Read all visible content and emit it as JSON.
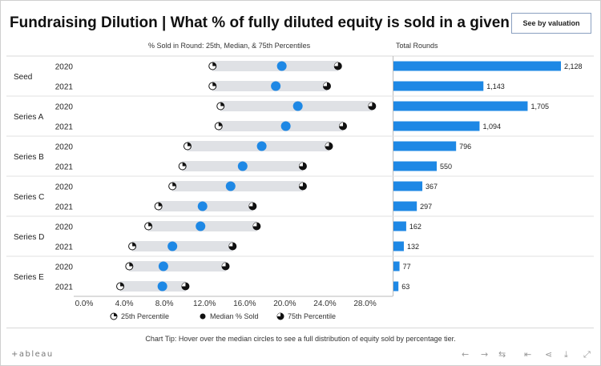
{
  "title": "Fundraising Dilution | What % of fully diluted equity is sold in a given round?",
  "valuation_button": "See by valuation",
  "left_subtitle": "% Sold in Round: 25th, Median, & 75th Percentiles",
  "right_subtitle": "Total Rounds",
  "legend": {
    "p25": "25th Percentile",
    "median": "Median % Sold",
    "p75": "75th Percentile"
  },
  "chart_tip": "Chart Tip: Hover over the median circles to see a full distribution of equity sold by percentage tier.",
  "brand": "+ableau",
  "colors": {
    "median": "#1e88e5",
    "bar": "#1e88e5",
    "range": "#dfe1e5",
    "marker": "#111111"
  },
  "chart_data": {
    "type": "dot-range + bar",
    "xlim": [
      0,
      0.3
    ],
    "x_ticks": [
      "0.0%",
      "4.0%",
      "8.0%",
      "12.0%",
      "16.0%",
      "20.0%",
      "24.0%",
      "28.0%"
    ],
    "groups": [
      {
        "name": "Seed",
        "rows": [
          {
            "year": "2020",
            "p25": 0.128,
            "median": 0.197,
            "p75": 0.253,
            "total": 2128,
            "total_label": "2,128"
          },
          {
            "year": "2021",
            "p25": 0.128,
            "median": 0.191,
            "p75": 0.242,
            "total": 1143,
            "total_label": "1,143"
          }
        ]
      },
      {
        "name": "Series A",
        "rows": [
          {
            "year": "2020",
            "p25": 0.136,
            "median": 0.213,
            "p75": 0.287,
            "total": 1705,
            "total_label": "1,705"
          },
          {
            "year": "2021",
            "p25": 0.134,
            "median": 0.201,
            "p75": 0.258,
            "total": 1094,
            "total_label": "1,094"
          }
        ]
      },
      {
        "name": "Series B",
        "rows": [
          {
            "year": "2020",
            "p25": 0.103,
            "median": 0.177,
            "p75": 0.244,
            "total": 796,
            "total_label": "796"
          },
          {
            "year": "2021",
            "p25": 0.098,
            "median": 0.158,
            "p75": 0.218,
            "total": 550,
            "total_label": "550"
          }
        ]
      },
      {
        "name": "Series C",
        "rows": [
          {
            "year": "2020",
            "p25": 0.088,
            "median": 0.146,
            "p75": 0.218,
            "total": 367,
            "total_label": "367"
          },
          {
            "year": "2021",
            "p25": 0.074,
            "median": 0.118,
            "p75": 0.168,
            "total": 297,
            "total_label": "297"
          }
        ]
      },
      {
        "name": "Series D",
        "rows": [
          {
            "year": "2020",
            "p25": 0.064,
            "median": 0.116,
            "p75": 0.172,
            "total": 162,
            "total_label": "162"
          },
          {
            "year": "2021",
            "p25": 0.048,
            "median": 0.088,
            "p75": 0.148,
            "total": 132,
            "total_label": "132"
          }
        ]
      },
      {
        "name": "Series E",
        "rows": [
          {
            "year": "2020",
            "p25": 0.045,
            "median": 0.079,
            "p75": 0.141,
            "total": 77,
            "total_label": "77"
          },
          {
            "year": "2021",
            "p25": 0.036,
            "median": 0.078,
            "p75": 0.101,
            "total": 63,
            "total_label": "63"
          }
        ]
      }
    ],
    "total_max": 2128
  }
}
